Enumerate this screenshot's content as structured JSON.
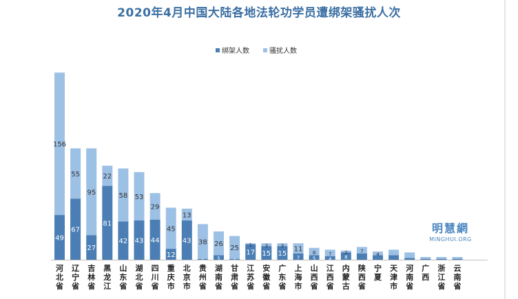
{
  "chart_data": {
    "type": "bar",
    "stacked": true,
    "title": "2020年4月中国大陆各地法轮功学员遭绑架骚扰人次",
    "categories": [
      "河北省",
      "辽宁省",
      "吉林省",
      "黑龙江",
      "山东省",
      "湖北省",
      "四川省",
      "重庆市",
      "北京市",
      "贵州省",
      "湖南省",
      "甘肃省",
      "江苏省",
      "安徽省",
      "广东省",
      "上海市",
      "山西省",
      "江西省",
      "内蒙古",
      "陕西省",
      "宁夏",
      "天津市",
      "河南省",
      "广西",
      "浙江省",
      "云南省"
    ],
    "series": [
      {
        "name": "绑架人数",
        "color": "#4a7eb5",
        "values": [
          49,
          67,
          27,
          81,
          42,
          43,
          44,
          12,
          43,
          1,
          5,
          1,
          17,
          15,
          15,
          7,
          5,
          4,
          8,
          7,
          5,
          5,
          2,
          1,
          1,
          1
        ],
        "labels": [
          "49",
          "67",
          "27",
          "81",
          "42",
          "43",
          "44",
          "12",
          "43",
          "1",
          "5",
          "1",
          "17",
          "15",
          "15",
          "7",
          "5",
          "4",
          "8",
          "",
          "",
          "",
          "",
          "",
          "",
          ""
        ]
      },
      {
        "name": "骚扰人数",
        "color": "#9dc0e5",
        "values": [
          156,
          55,
          95,
          22,
          58,
          53,
          29,
          45,
          13,
          38,
          26,
          25,
          1,
          3,
          3,
          11,
          8,
          7,
          2,
          7,
          4,
          6,
          6,
          2,
          2,
          2
        ],
        "labels": [
          "156",
          "55",
          "95",
          "22",
          "58",
          "53",
          "29",
          "45",
          "13",
          "38",
          "26",
          "25",
          "1",
          "3",
          "3",
          "11",
          "8",
          "7",
          "2",
          "7",
          "4",
          "",
          "",
          "",
          "",
          ""
        ]
      }
    ],
    "legend_position": "top-center",
    "grid": false
  },
  "watermark": {
    "cn": "明慧網",
    "en": "MINGHUI.ORG"
  }
}
